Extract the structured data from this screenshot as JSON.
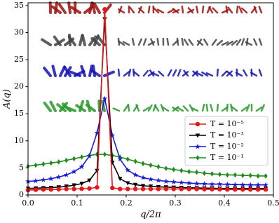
{
  "chart_data": {
    "type": "line",
    "x_label": "q/2π",
    "y_label": "A(q)",
    "xlim": [
      0,
      0.5
    ],
    "ylim": [
      0,
      35.5
    ],
    "xticks": [
      {
        "value": 0,
        "label": "0.0"
      },
      0.1,
      0.2,
      0.3,
      0.4,
      0.5
    ],
    "yticks": [
      0,
      5,
      10,
      15,
      20,
      25,
      30,
      35
    ],
    "legend": "lower right",
    "grid": false,
    "x": [
      0,
      0.015625,
      0.03125,
      0.046875,
      0.0625,
      0.078125,
      0.09375,
      0.109375,
      0.125,
      0.140625,
      0.15625,
      0.171875,
      0.1875,
      0.203125,
      0.21875,
      0.234375,
      0.25,
      0.265625,
      0.28125,
      0.296875,
      0.3125,
      0.328125,
      0.34375,
      0.359375,
      0.375,
      0.390625,
      0.40625,
      0.421875,
      0.4375,
      0.453125,
      0.46875,
      0.484375
    ],
    "series": [
      {
        "name": "T = 10⁻⁵",
        "color": "#e8161a",
        "marker": "circle",
        "values": [
          0.9,
          0.95,
          1,
          1,
          1.05,
          1.1,
          1.1,
          1.15,
          1.2,
          1.4,
          34.3,
          1.3,
          1.1,
          1.1,
          1.1,
          1.1,
          1.1,
          1.1,
          1.1,
          1.1,
          1.1,
          1.1,
          1.1,
          1.05,
          1.05,
          1.05,
          1.0,
          1.0,
          1.0,
          1.0,
          1.0,
          1.0
        ]
      },
      {
        "name": "T = 10⁻³",
        "color": "#000000",
        "marker": "triangle-down",
        "values": [
          1.2,
          1.25,
          1.3,
          1.35,
          1.45,
          1.6,
          1.8,
          2.1,
          2.7,
          4.5,
          32.5,
          6,
          3,
          2.2,
          1.9,
          1.7,
          1.6,
          1.5,
          1.45,
          1.4,
          1.35,
          1.3,
          1.3,
          1.25,
          1.25,
          1.2,
          1.2,
          1.2,
          1.2,
          1.2,
          1.2,
          1.2
        ]
      },
      {
        "name": "T = 10⁻²",
        "color": "#1a1adb",
        "marker": "star",
        "values": [
          2.5,
          2.6,
          2.8,
          3.0,
          3.3,
          3.7,
          4.3,
          5.2,
          7.2,
          11.5,
          17.8,
          11,
          6.6,
          4.6,
          3.7,
          3.2,
          2.9,
          2.7,
          2.5,
          2.4,
          2.3,
          2.2,
          2.1,
          2.05,
          2,
          2,
          1.95,
          1.9,
          1.9,
          1.85,
          1.85,
          1.85
        ]
      },
      {
        "name": "T = 10⁻¹",
        "color": "#1e8c1e",
        "marker": "diamond",
        "values": [
          5.3,
          5.5,
          5.7,
          5.9,
          6.1,
          6.4,
          6.7,
          7.0,
          7.3,
          7.5,
          7.5,
          7.3,
          7.0,
          6.6,
          6.2,
          5.8,
          5.5,
          5.2,
          4.9,
          4.7,
          4.5,
          4.3,
          4.2,
          4.0,
          3.9,
          3.8,
          3.7,
          3.7,
          3.6,
          3.6,
          3.5,
          3.5
        ]
      }
    ]
  }
}
